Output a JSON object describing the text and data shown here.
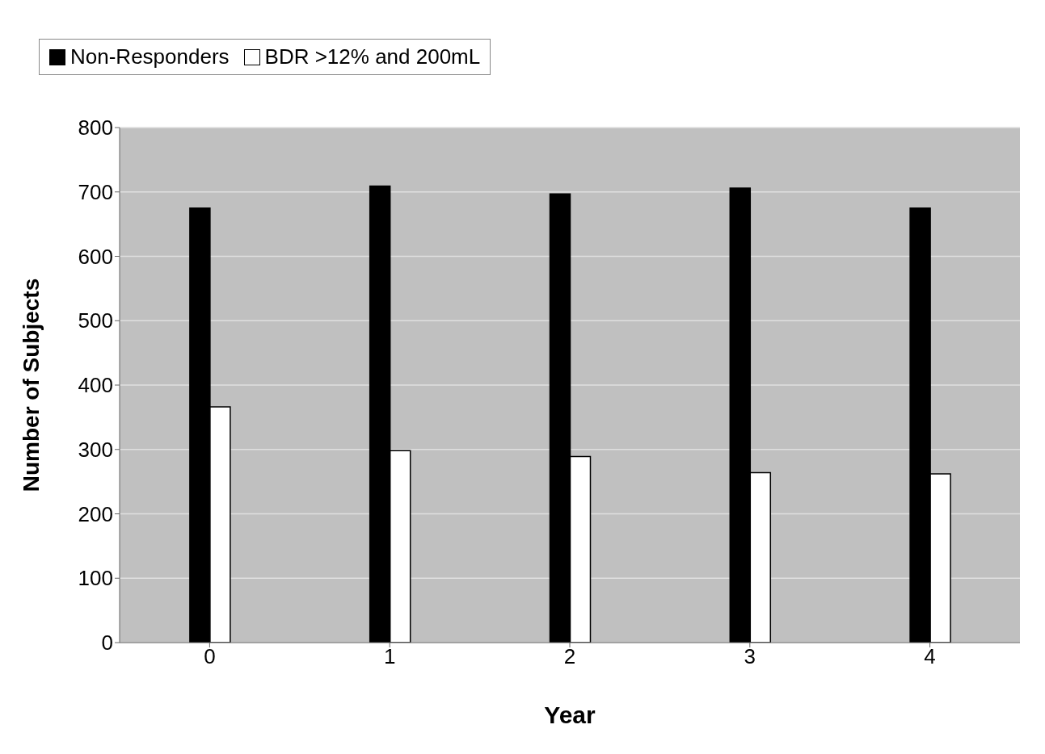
{
  "chart_data": {
    "type": "bar",
    "xlabel": "Year",
    "ylabel": "Number of Subjects",
    "categories": [
      "0",
      "1",
      "2",
      "3",
      "4"
    ],
    "series": [
      {
        "name": "Non-Responders",
        "color": "#000000",
        "values": [
          675,
          709,
          697,
          706,
          675
        ]
      },
      {
        "name": "BDR >12% and 200mL",
        "color": "#ffffff",
        "values": [
          366,
          298,
          289,
          264,
          262
        ]
      }
    ],
    "ylim": [
      0,
      800
    ],
    "yticks": [
      0,
      100,
      200,
      300,
      400,
      500,
      600,
      700,
      800
    ],
    "grid": "y",
    "legend": "top"
  }
}
